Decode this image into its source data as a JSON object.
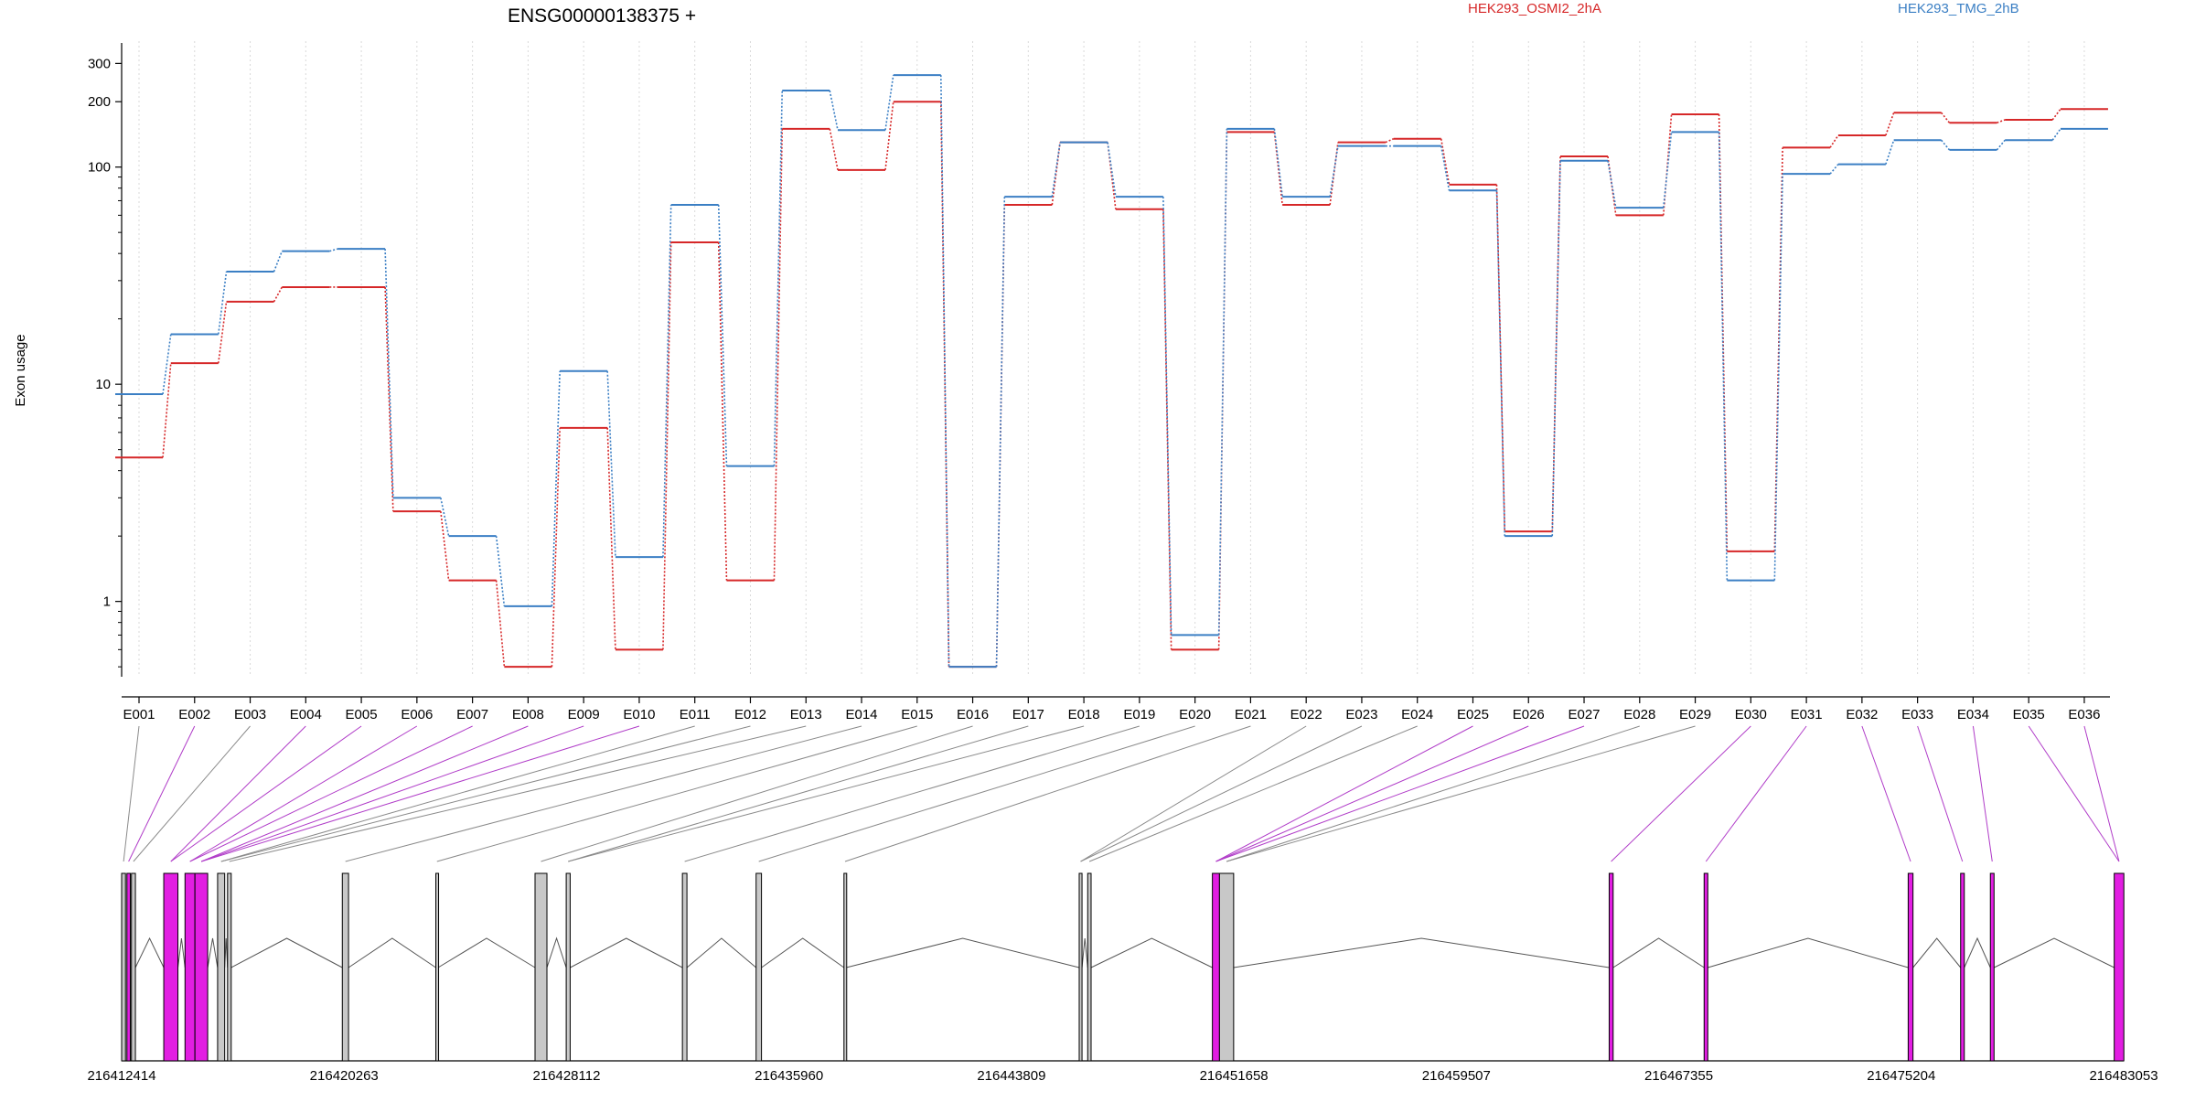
{
  "chart_data": {
    "type": "line",
    "title": "ENSG00000138375 +",
    "ylabel": "Exon usage",
    "xlabel": "",
    "y_scale": "log",
    "ylim": [
      0.45,
      380
    ],
    "y_ticks": [
      1,
      10,
      100,
      200,
      300
    ],
    "grid": "vertical dotted lines at each exon",
    "legend_placement": "top",
    "colors": {
      "series_osmi": "#d62728",
      "series_tmg": "#3b7fc4",
      "exon_highlight": "#e21ee2",
      "exon_plain": "#c8c8c8"
    },
    "categories": [
      "E001",
      "E002",
      "E003",
      "E004",
      "E005",
      "E006",
      "E007",
      "E008",
      "E009",
      "E010",
      "E011",
      "E012",
      "E013",
      "E014",
      "E015",
      "E016",
      "E017",
      "E018",
      "E019",
      "E020",
      "E021",
      "E022",
      "E023",
      "E024",
      "E025",
      "E026",
      "E027",
      "E028",
      "E029",
      "E030",
      "E031",
      "E032",
      "E033",
      "E034",
      "E035",
      "E036"
    ],
    "series": [
      {
        "name": "HEK293_OSMI2_2hA",
        "color": "#d62728",
        "values": [
          4.6,
          12.5,
          24,
          28,
          28,
          2.6,
          1.25,
          0.5,
          6.3,
          0.6,
          45,
          1.25,
          150,
          97,
          200,
          0.5,
          67,
          130,
          64,
          0.6,
          145,
          67,
          130,
          135,
          83,
          2.1,
          112,
          60,
          175,
          1.7,
          123,
          140,
          178,
          160,
          165,
          185
        ]
      },
      {
        "name": "HEK293_TMG_2hB",
        "color": "#3b7fc4",
        "values": [
          9,
          17,
          33,
          41,
          42,
          3.0,
          2.0,
          0.95,
          11.5,
          1.6,
          67,
          4.2,
          225,
          148,
          265,
          0.5,
          73,
          130,
          73,
          0.7,
          150,
          73,
          125,
          125,
          78,
          2.0,
          107,
          65,
          145,
          1.25,
          93,
          103,
          133,
          120,
          133,
          150
        ]
      }
    ],
    "genomic_axis": {
      "tick_labels": [
        "216412414",
        "216420263",
        "216428112",
        "216435960",
        "216443809",
        "216451658",
        "216459507",
        "216467355",
        "216475204",
        "216483053"
      ]
    },
    "exon_models": [
      {
        "start": 216412414,
        "end": 216412550,
        "highlight": false
      },
      {
        "start": 216412600,
        "end": 216412720,
        "highlight": true
      },
      {
        "start": 216412760,
        "end": 216412900,
        "highlight": false
      },
      {
        "start": 216413900,
        "end": 216414400,
        "highlight": true
      },
      {
        "start": 216414650,
        "end": 216415000,
        "highlight": true
      },
      {
        "start": 216415000,
        "end": 216415450,
        "highlight": true
      },
      {
        "start": 216415800,
        "end": 216416050,
        "highlight": false
      },
      {
        "start": 216416150,
        "end": 216416280,
        "highlight": false
      },
      {
        "start": 216420200,
        "end": 216420420,
        "highlight": false
      },
      {
        "start": 216423500,
        "end": 216423580,
        "highlight": false
      },
      {
        "start": 216427000,
        "end": 216427420,
        "highlight": false
      },
      {
        "start": 216428100,
        "end": 216428240,
        "highlight": false
      },
      {
        "start": 216432200,
        "end": 216432360,
        "highlight": false
      },
      {
        "start": 216434800,
        "end": 216434990,
        "highlight": false
      },
      {
        "start": 216437900,
        "end": 216437980,
        "highlight": false
      },
      {
        "start": 216446200,
        "end": 216446300,
        "highlight": false
      },
      {
        "start": 216446500,
        "end": 216446620,
        "highlight": false
      },
      {
        "start": 216450900,
        "end": 216451150,
        "highlight": true
      },
      {
        "start": 216451150,
        "end": 216451650,
        "highlight": false
      },
      {
        "start": 216464900,
        "end": 216465040,
        "highlight": true
      },
      {
        "start": 216468250,
        "end": 216468380,
        "highlight": true
      },
      {
        "start": 216475450,
        "end": 216475620,
        "highlight": true
      },
      {
        "start": 216477300,
        "end": 216477430,
        "highlight": true
      },
      {
        "start": 216478350,
        "end": 216478480,
        "highlight": true
      },
      {
        "start": 216482720,
        "end": 216483060,
        "highlight": true
      }
    ],
    "exon_to_model_connectors": [
      0,
      1,
      2,
      3,
      3,
      4,
      4,
      5,
      5,
      5,
      6,
      6,
      7,
      8,
      9,
      10,
      11,
      11,
      12,
      13,
      14,
      15,
      15,
      16,
      17,
      17,
      17,
      18,
      18,
      19,
      20,
      21,
      22,
      23,
      24,
      24
    ]
  }
}
